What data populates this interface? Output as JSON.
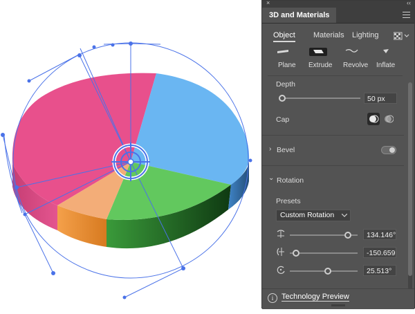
{
  "panel": {
    "title": "3D and Materials",
    "close_glyph": "×",
    "collapse_glyph": "‹‹",
    "tabs": [
      "Object",
      "Materials",
      "Lighting"
    ],
    "active_tab": "Object",
    "object_types": [
      "Plane",
      "Extrude",
      "Revolve",
      "Inflate"
    ],
    "depth": {
      "label": "Depth",
      "value": "50 px"
    },
    "cap": {
      "label": "Cap"
    },
    "bevel": {
      "label": "Bevel",
      "chevron": "›"
    },
    "rotation": {
      "label": "Rotation",
      "chevron": "⌄",
      "presets_label": "Presets",
      "preset_value": "Custom Rotation",
      "x_value": "134.146°",
      "y_value": "-150.659",
      "z_value": "25.513°"
    },
    "footer": {
      "label": "Technology Preview",
      "icon_glyph": "i"
    }
  },
  "colors": {
    "pink": "#e8508c",
    "blue": "#6ab6f2",
    "green": "#62c85e",
    "orange": "#f3ad78",
    "selection": "#4a72e8",
    "panel_bg": "#535353"
  }
}
